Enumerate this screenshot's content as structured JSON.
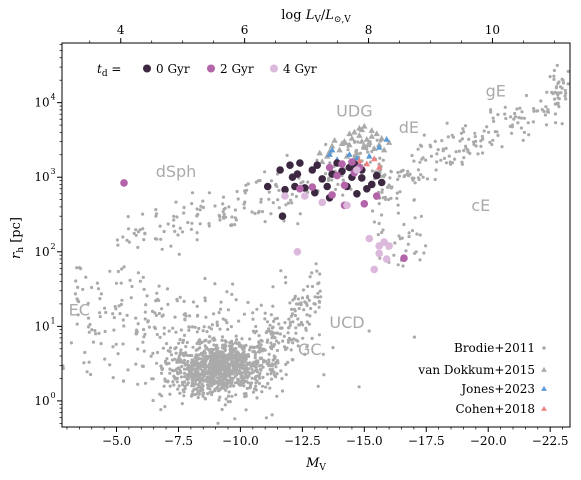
{
  "chart_data": {
    "type": "scatter",
    "xlabel": "M_V",
    "top_xlabel": "log L_V/L_⊙,V",
    "ylabel": "r_h [pc]",
    "xlim": [
      -2.8,
      -23.3
    ],
    "ylim_log10": [
      -0.35,
      4.8
    ],
    "x_ticks": [
      -5.0,
      -7.5,
      -10.0,
      -12.5,
      -15.0,
      -17.5,
      -20.0,
      -22.5
    ],
    "x_tick_labels": [
      "−5.0",
      "−7.5",
      "−10.0",
      "−12.5",
      "−15.0",
      "−17.5",
      "−20.0",
      "−22.5"
    ],
    "top_ticks": [
      2,
      4,
      6,
      8,
      10
    ],
    "y_ticks_exp": [
      0,
      1,
      2,
      3,
      4
    ],
    "y_tick_labels": [
      "10",
      "10",
      "10",
      "10",
      "10"
    ],
    "y_tick_exponents": [
      "0",
      "1",
      "2",
      "3",
      "4"
    ],
    "region_labels": [
      {
        "text": "UDG",
        "x": -14.6,
        "y": 6500
      },
      {
        "text": "dE",
        "x": -16.8,
        "y": 3900
      },
      {
        "text": "gE",
        "x": -20.3,
        "y": 12000
      },
      {
        "text": "dSph",
        "x": -7.4,
        "y": 1000
      },
      {
        "text": "cE",
        "x": -19.7,
        "y": 350
      },
      {
        "text": "EC",
        "x": -3.5,
        "y": 14
      },
      {
        "text": "UCD",
        "x": -14.3,
        "y": 9.5
      },
      {
        "text": "GC",
        "x": -12.8,
        "y": 4.1
      }
    ],
    "age_legend": {
      "label": "t_d =",
      "items": [
        {
          "name": "0 Gyr",
          "color": "#3d2841"
        },
        {
          "name": "2 Gyr",
          "color": "#b464a8"
        },
        {
          "name": "4 Gyr",
          "color": "#dcb8dc"
        }
      ]
    },
    "catalog_legend": [
      {
        "name": "Brodie+2011",
        "marker": "dot",
        "color": "#aaaaaa"
      },
      {
        "name": "van Dokkum+2015",
        "marker": "triangle",
        "color": "#aaaaaa"
      },
      {
        "name": "Jones+2023",
        "marker": "triangle",
        "color": "#5b9bd5"
      },
      {
        "name": "Cohen+2018",
        "marker": "triangle",
        "color": "#f08080"
      }
    ],
    "series": [
      {
        "name": "van Dokkum+2015",
        "marker": "triangle",
        "color": "#aaaaaa",
        "points": [
          [
            -13.2,
            2100
          ],
          [
            -13.5,
            1900
          ],
          [
            -13.7,
            2600
          ],
          [
            -14.0,
            2300
          ],
          [
            -14.2,
            3000
          ],
          [
            -14.4,
            2700
          ],
          [
            -14.6,
            4000
          ],
          [
            -14.8,
            3600
          ],
          [
            -14.9,
            4300
          ],
          [
            -15.1,
            3200
          ],
          [
            -15.3,
            4200
          ],
          [
            -15.5,
            3800
          ],
          [
            -13.9,
            1700
          ],
          [
            -14.3,
            1900
          ],
          [
            -14.7,
            2100
          ],
          [
            -15.0,
            2600
          ],
          [
            -15.2,
            2900
          ],
          [
            -14.5,
            3300
          ],
          [
            -15.4,
            2400
          ],
          [
            -13.6,
            2200
          ],
          [
            -14.1,
            2800
          ],
          [
            -14.9,
            3000
          ],
          [
            -15.6,
            2700
          ],
          [
            -13.3,
            1600
          ],
          [
            -14.6,
            1800
          ],
          [
            -15.7,
            3300
          ],
          [
            -14.8,
            4500
          ],
          [
            -15.0,
            4800
          ],
          [
            -14.4,
            3800
          ],
          [
            -15.3,
            3500
          ],
          [
            -13.8,
            3100
          ],
          [
            -14.0,
            1500
          ],
          [
            -15.8,
            2300
          ],
          [
            -16.0,
            2900
          ]
        ]
      },
      {
        "name": "Jones+2023",
        "marker": "triangle",
        "color": "#5b9bd5",
        "points": [
          [
            -13.6,
            2000
          ],
          [
            -13.9,
            1700
          ],
          [
            -14.1,
            1500
          ],
          [
            -14.4,
            2000
          ],
          [
            -14.7,
            1800
          ],
          [
            -15.2,
            1900
          ],
          [
            -15.6,
            2500
          ],
          [
            -15.9,
            3200
          ],
          [
            -13.7,
            2300
          ],
          [
            -14.6,
            1600
          ]
        ]
      },
      {
        "name": "Cohen+2018",
        "marker": "triangle",
        "color": "#f08080",
        "points": [
          [
            -15.1,
            1500
          ],
          [
            -15.4,
            1750
          ],
          [
            -15.6,
            1350
          ],
          [
            -14.8,
            1650
          ]
        ]
      },
      {
        "name": "0 Gyr",
        "marker": "dot",
        "color": "#3d2841",
        "points": [
          [
            -11.1,
            750
          ],
          [
            -11.6,
            1250
          ],
          [
            -11.8,
            680
          ],
          [
            -12.0,
            1450
          ],
          [
            -12.1,
            1000
          ],
          [
            -12.2,
            750
          ],
          [
            -12.4,
            1550
          ],
          [
            -12.6,
            720
          ],
          [
            -12.9,
            1250
          ],
          [
            -13.1,
            1450
          ],
          [
            -13.3,
            950
          ],
          [
            -13.5,
            750
          ],
          [
            -13.7,
            1100
          ],
          [
            -13.9,
            1550
          ],
          [
            -14.1,
            1200
          ],
          [
            -14.3,
            750
          ],
          [
            -14.5,
            1000
          ],
          [
            -14.7,
            600
          ],
          [
            -14.9,
            1250
          ],
          [
            -15.1,
            700
          ],
          [
            -15.3,
            800
          ],
          [
            -15.5,
            1050
          ],
          [
            -15.7,
            850
          ],
          [
            -11.7,
            300
          ],
          [
            -13.6,
            530
          ],
          [
            -14.4,
            1350
          ],
          [
            -14.9,
            980
          ],
          [
            -12.3,
            1100
          ],
          [
            -13.0,
            620
          ],
          [
            -14.6,
            1500
          ]
        ]
      },
      {
        "name": "2 Gyr",
        "marker": "dot",
        "color": "#b464a8",
        "points": [
          [
            -5.3,
            840
          ],
          [
            -12.4,
            700
          ],
          [
            -12.9,
            740
          ],
          [
            -13.6,
            1350
          ],
          [
            -13.7,
            580
          ],
          [
            -13.9,
            1050
          ],
          [
            -14.1,
            1500
          ],
          [
            -14.2,
            780
          ],
          [
            -14.5,
            1600
          ],
          [
            -14.6,
            1150
          ],
          [
            -14.8,
            1350
          ],
          [
            -15.0,
            440
          ],
          [
            -15.5,
            560
          ],
          [
            -16.6,
            82
          ],
          [
            -14.2,
            420
          ]
        ]
      },
      {
        "name": "4 Gyr",
        "marker": "dot",
        "color": "#dcb8dc",
        "points": [
          [
            -11.8,
            560
          ],
          [
            -12.3,
            100
          ],
          [
            -12.6,
            560
          ],
          [
            -13.3,
            460
          ],
          [
            -14.3,
            420
          ],
          [
            -14.7,
            1250
          ],
          [
            -15.2,
            150
          ],
          [
            -15.6,
            120
          ],
          [
            -15.8,
            135
          ],
          [
            -15.9,
            80
          ],
          [
            -15.6,
            95
          ],
          [
            -15.4,
            58
          ],
          [
            -16.0,
            120
          ]
        ]
      }
    ]
  }
}
